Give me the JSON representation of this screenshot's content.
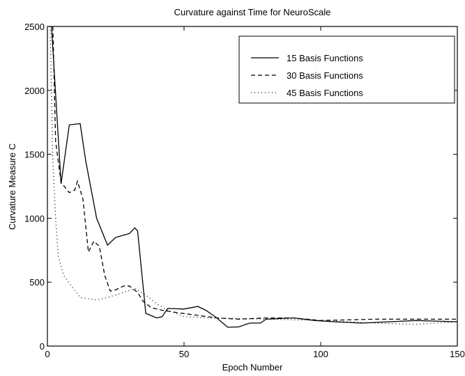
{
  "chart_data": {
    "type": "line",
    "title": "Curvature against Time for NeuroScale",
    "xlabel": "Epoch Number",
    "ylabel": "Curvature Measure C",
    "xlim": [
      0,
      150
    ],
    "xticks": [
      0,
      50,
      100,
      150
    ],
    "ylim": [
      0,
      2500
    ],
    "yticks": [
      0,
      500,
      1000,
      1500,
      2000,
      2500
    ],
    "legend": "upper right",
    "series": [
      {
        "name": "15 Basis Functions",
        "color": "#000000",
        "dash": "solid",
        "x": [
          1.5,
          5,
          8,
          12,
          14,
          18,
          22,
          25,
          30,
          32,
          33,
          36,
          40,
          42,
          44,
          50,
          55,
          58,
          62,
          66,
          70,
          74,
          78,
          80,
          90,
          98,
          105,
          115,
          125,
          135,
          150
        ],
        "values": [
          2500,
          1270,
          1730,
          1740,
          1450,
          1000,
          790,
          850,
          880,
          925,
          900,
          256,
          220,
          230,
          294,
          290,
          310,
          280,
          220,
          147,
          150,
          180,
          180,
          210,
          220,
          200,
          190,
          180,
          190,
          200,
          190
        ]
      },
      {
        "name": "30 Basis Functions",
        "color": "#000000",
        "dash": "dashed",
        "x": [
          2,
          3,
          5,
          8,
          10,
          11,
          13,
          15,
          17,
          19,
          21,
          23,
          25,
          28,
          30,
          33,
          35,
          38,
          42,
          48,
          55,
          62,
          70,
          80,
          90,
          100,
          120,
          150
        ],
        "values": [
          2500,
          1600,
          1280,
          1200,
          1220,
          1290,
          1150,
          735,
          820,
          780,
          550,
          430,
          440,
          470,
          470,
          420,
          350,
          300,
          280,
          260,
          240,
          220,
          210,
          220,
          220,
          200,
          210,
          210
        ]
      },
      {
        "name": "45 Basis Functions",
        "color": "#000000",
        "dash": "dotted",
        "x": [
          1,
          2,
          3,
          4,
          6,
          12,
          18,
          22,
          28,
          32,
          36,
          40,
          44,
          50,
          60,
          80,
          100,
          120,
          135,
          150
        ],
        "values": [
          2500,
          1450,
          1000,
          700,
          550,
          380,
          360,
          380,
          420,
          450,
          400,
          330,
          280,
          230,
          220,
          210,
          200,
          180,
          170,
          190
        ]
      }
    ]
  }
}
